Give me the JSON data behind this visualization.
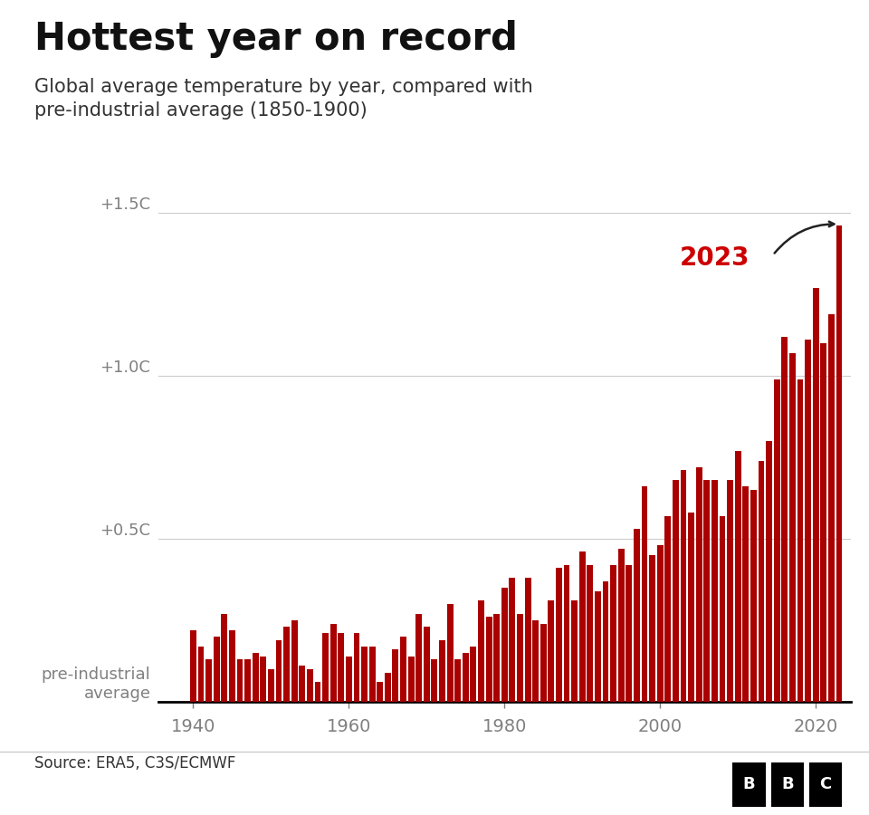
{
  "title": "Hottest year on record",
  "subtitle": "Global average temperature by year, compared with\npre-industrial average (1850-1900)",
  "source": "Source: ERA5, C3S/ECMWF",
  "bar_color": "#aa0000",
  "background_color": "#ffffff",
  "annotation_label": "2023",
  "annotation_color": "#cc0000",
  "years": [
    1940,
    1941,
    1942,
    1943,
    1944,
    1945,
    1946,
    1947,
    1948,
    1949,
    1950,
    1951,
    1952,
    1953,
    1954,
    1955,
    1956,
    1957,
    1958,
    1959,
    1960,
    1961,
    1962,
    1963,
    1964,
    1965,
    1966,
    1967,
    1968,
    1969,
    1970,
    1971,
    1972,
    1973,
    1974,
    1975,
    1976,
    1977,
    1978,
    1979,
    1980,
    1981,
    1982,
    1983,
    1984,
    1985,
    1986,
    1987,
    1988,
    1989,
    1990,
    1991,
    1992,
    1993,
    1994,
    1995,
    1996,
    1997,
    1998,
    1999,
    2000,
    2001,
    2002,
    2003,
    2004,
    2005,
    2006,
    2007,
    2008,
    2009,
    2010,
    2011,
    2012,
    2013,
    2014,
    2015,
    2016,
    2017,
    2018,
    2019,
    2020,
    2021,
    2022,
    2023
  ],
  "values": [
    0.22,
    0.17,
    0.13,
    0.2,
    0.27,
    0.22,
    0.13,
    0.13,
    0.15,
    0.14,
    0.1,
    0.19,
    0.23,
    0.25,
    0.11,
    0.1,
    0.06,
    0.21,
    0.24,
    0.21,
    0.14,
    0.21,
    0.17,
    0.17,
    0.06,
    0.09,
    0.16,
    0.2,
    0.14,
    0.27,
    0.23,
    0.13,
    0.19,
    0.3,
    0.13,
    0.15,
    0.17,
    0.31,
    0.26,
    0.27,
    0.35,
    0.38,
    0.27,
    0.38,
    0.25,
    0.24,
    0.31,
    0.41,
    0.42,
    0.31,
    0.46,
    0.42,
    0.34,
    0.37,
    0.42,
    0.47,
    0.42,
    0.53,
    0.66,
    0.45,
    0.48,
    0.57,
    0.68,
    0.71,
    0.58,
    0.72,
    0.68,
    0.68,
    0.57,
    0.68,
    0.77,
    0.66,
    0.65,
    0.74,
    0.8,
    0.99,
    1.12,
    1.07,
    0.99,
    1.11,
    1.27,
    1.1,
    1.19,
    1.46
  ],
  "ytick_positions": [
    0.0,
    0.5,
    1.0,
    1.5
  ],
  "ytick_labels": [
    "pre-industrial\naverage",
    "+0.5C",
    "+1.0C",
    "+1.5C"
  ],
  "xtick_positions": [
    1940,
    1960,
    1980,
    2000,
    2020
  ],
  "xlim": [
    1935.5,
    2024.5
  ],
  "ylim": [
    0.0,
    1.65
  ]
}
